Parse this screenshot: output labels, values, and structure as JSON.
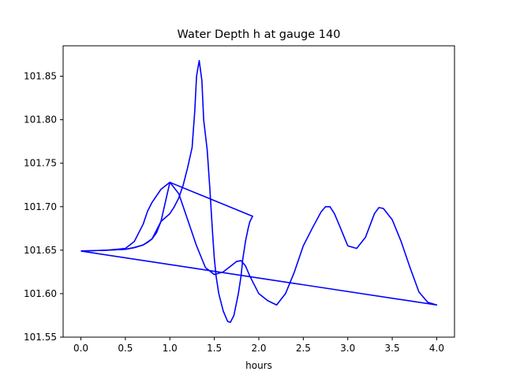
{
  "chart_data": {
    "type": "line",
    "title": "Water Depth h at gauge 140",
    "xlabel": "hours",
    "ylabel": "",
    "xlim": [
      -0.2,
      4.2
    ],
    "ylim": [
      101.55,
      101.885
    ],
    "xticks": [
      0.0,
      0.5,
      1.0,
      1.5,
      2.0,
      2.5,
      3.0,
      3.5,
      4.0
    ],
    "xtick_labels": [
      "0.0",
      "0.5",
      "1.0",
      "1.5",
      "2.0",
      "2.5",
      "3.0",
      "3.5",
      "4.0"
    ],
    "yticks": [
      101.55,
      101.6,
      101.65,
      101.7,
      101.75,
      101.8,
      101.85
    ],
    "ytick_labels": [
      "101.55",
      "101.60",
      "101.65",
      "101.70",
      "101.75",
      "101.80",
      "101.85"
    ],
    "grid": false,
    "legend": "none",
    "series": [
      {
        "color": "#0000ff",
        "x": [
          0.0,
          0.3,
          0.5,
          0.6,
          0.7,
          0.75,
          0.8,
          0.85,
          0.9,
          1.0,
          1.05,
          1.1,
          1.15,
          1.2,
          1.25,
          1.28,
          1.3,
          1.33,
          1.36,
          1.38,
          1.42,
          1.45,
          1.48,
          1.5,
          1.52,
          1.55,
          1.6,
          1.65,
          1.68,
          1.72,
          1.77,
          1.8,
          1.82,
          1.85,
          1.88,
          1.9,
          1.93,
          1.93,
          1.0,
          0.9,
          0.8,
          0.75,
          0.7,
          0.6,
          0.5,
          0.3,
          0.0
        ],
        "y": [
          101.649,
          101.65,
          101.651,
          101.653,
          101.656,
          101.659,
          101.663,
          101.67,
          101.683,
          101.692,
          101.7,
          101.71,
          101.725,
          101.745,
          101.768,
          101.81,
          101.85,
          101.868,
          101.845,
          101.8,
          101.765,
          101.72,
          101.67,
          101.64,
          101.62,
          101.6,
          101.58,
          101.568,
          101.567,
          101.575,
          101.6,
          101.62,
          101.64,
          101.66,
          101.675,
          101.683,
          101.689,
          101.689,
          101.728,
          101.72,
          101.705,
          101.695,
          101.68,
          101.66,
          101.652,
          101.65,
          101.649
        ]
      },
      {
        "color": "#0000ff",
        "x": [
          0.0,
          0.3,
          0.5,
          0.6,
          0.7,
          0.8,
          0.9,
          1.0,
          1.1,
          1.2,
          1.3,
          1.4,
          1.5,
          1.6,
          1.7,
          1.75,
          1.8,
          1.85,
          1.9,
          2.0,
          2.1,
          2.2,
          2.3,
          2.4,
          2.5,
          2.6,
          2.7,
          2.75,
          2.8,
          2.85,
          2.9,
          3.0,
          3.1,
          3.2,
          3.3,
          3.35,
          3.4,
          3.5,
          3.6,
          3.7,
          3.8,
          3.9,
          4.0,
          0.0
        ],
        "y": [
          101.649,
          101.65,
          101.651,
          101.653,
          101.656,
          101.663,
          101.683,
          101.728,
          101.715,
          101.685,
          101.655,
          101.63,
          101.622,
          101.625,
          101.633,
          101.637,
          101.638,
          101.632,
          101.62,
          101.6,
          101.592,
          101.587,
          101.6,
          101.625,
          101.655,
          101.675,
          101.694,
          101.7,
          101.7,
          101.692,
          101.68,
          101.655,
          101.652,
          101.665,
          101.692,
          101.699,
          101.698,
          101.685,
          101.66,
          101.63,
          101.602,
          101.59,
          101.587,
          101.649
        ]
      }
    ]
  }
}
